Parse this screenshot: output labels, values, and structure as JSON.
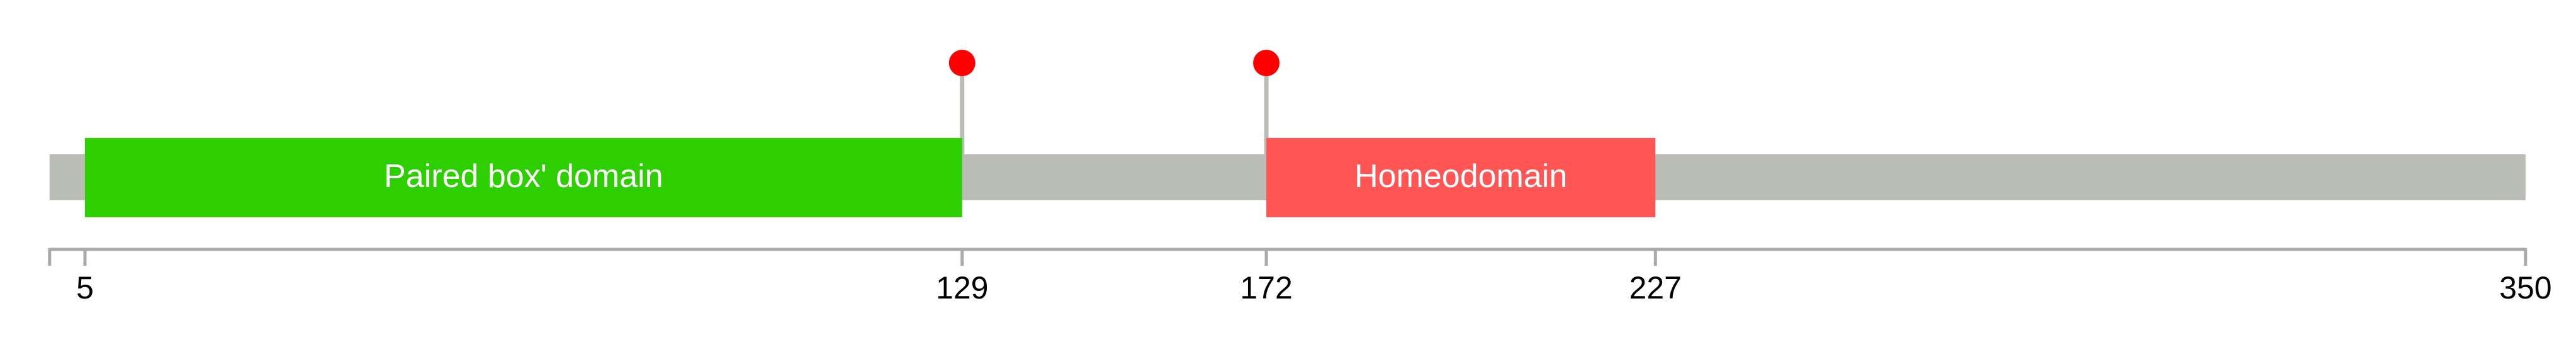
{
  "chart_data": {
    "type": "protein-domain-lollipop",
    "protein_length": 350,
    "axis_range": [
      0,
      350
    ],
    "tick_labels": [
      "5",
      "129",
      "172",
      "227",
      "350"
    ],
    "ticks": [
      5,
      129,
      172,
      227,
      350
    ],
    "domains": [
      {
        "name": "Paired box' domain",
        "start": 5,
        "end": 129,
        "color": "#2ecf00"
      },
      {
        "name": "Homeodomain",
        "start": 172,
        "end": 227,
        "color": "#ff5555"
      }
    ],
    "mutations": [
      {
        "position": 129
      },
      {
        "position": 172
      }
    ],
    "colors": {
      "backbone": "#babdb6",
      "axis": "#aaaaaa",
      "mutation": "#ff0000",
      "stem": "#babdb6",
      "label": "#000000",
      "domain_text": "#ffffff"
    }
  }
}
